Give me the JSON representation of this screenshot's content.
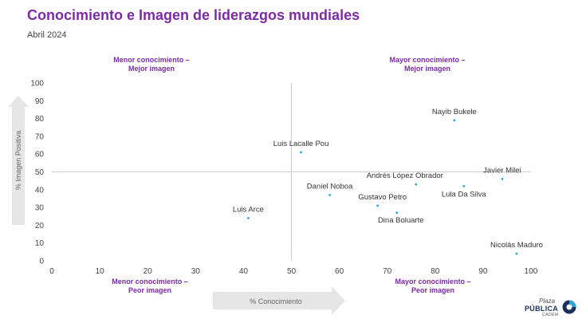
{
  "header": {
    "title": "Conocimiento e Imagen de liderazgos mundiales",
    "subtitle": "Abril 2024"
  },
  "quadrants": {
    "top_left": [
      "Menor conocimiento –",
      "Mejor imagen"
    ],
    "top_right": [
      "Mayor conocimiento –",
      "Mejor imagen"
    ],
    "bottom_left": [
      "Menor conocimiento –",
      "Peor imagen"
    ],
    "bottom_right": [
      "Mayor conocimiento –",
      "Peor imagen"
    ]
  },
  "logo": {
    "top": "Plaza",
    "main": "PÚBLICA",
    "sub": "CADEM"
  },
  "colors": {
    "accent": "#7b2aa8",
    "point": "#2aa7d9",
    "arrow": "#e6e6e6",
    "divider": "#bdbdbd"
  },
  "chart_data": {
    "type": "scatter",
    "xlabel": "% Conocimiento",
    "ylabel": "% Imagen Positiva",
    "xlim": [
      0,
      100
    ],
    "ylim": [
      0,
      100
    ],
    "xticks": [
      0,
      10,
      20,
      30,
      40,
      50,
      60,
      70,
      80,
      90,
      100
    ],
    "yticks": [
      0,
      10,
      20,
      30,
      40,
      50,
      60,
      70,
      80,
      90,
      100
    ],
    "divider_x": 50,
    "divider_y": 50,
    "grid": false,
    "points": [
      {
        "label": "Nayib Bukele",
        "x": 84,
        "y": 79
      },
      {
        "label": "Luis Lacalle Pou",
        "x": 52,
        "y": 61
      },
      {
        "label": "Andrés López Obrador",
        "x": 76,
        "y": 43
      },
      {
        "label": "Javier Milei",
        "x": 94,
        "y": 46
      },
      {
        "label": "Lula Da Silva",
        "x": 86,
        "y": 42
      },
      {
        "label": "Daniel Noboa",
        "x": 58,
        "y": 37
      },
      {
        "label": "Gustavo Petro",
        "x": 68,
        "y": 31
      },
      {
        "label": "Dina Boluarte",
        "x": 72,
        "y": 27
      },
      {
        "label": "Luis Arce",
        "x": 41,
        "y": 24
      },
      {
        "label": "Nicolás Maduro",
        "x": 97,
        "y": 4
      }
    ]
  }
}
